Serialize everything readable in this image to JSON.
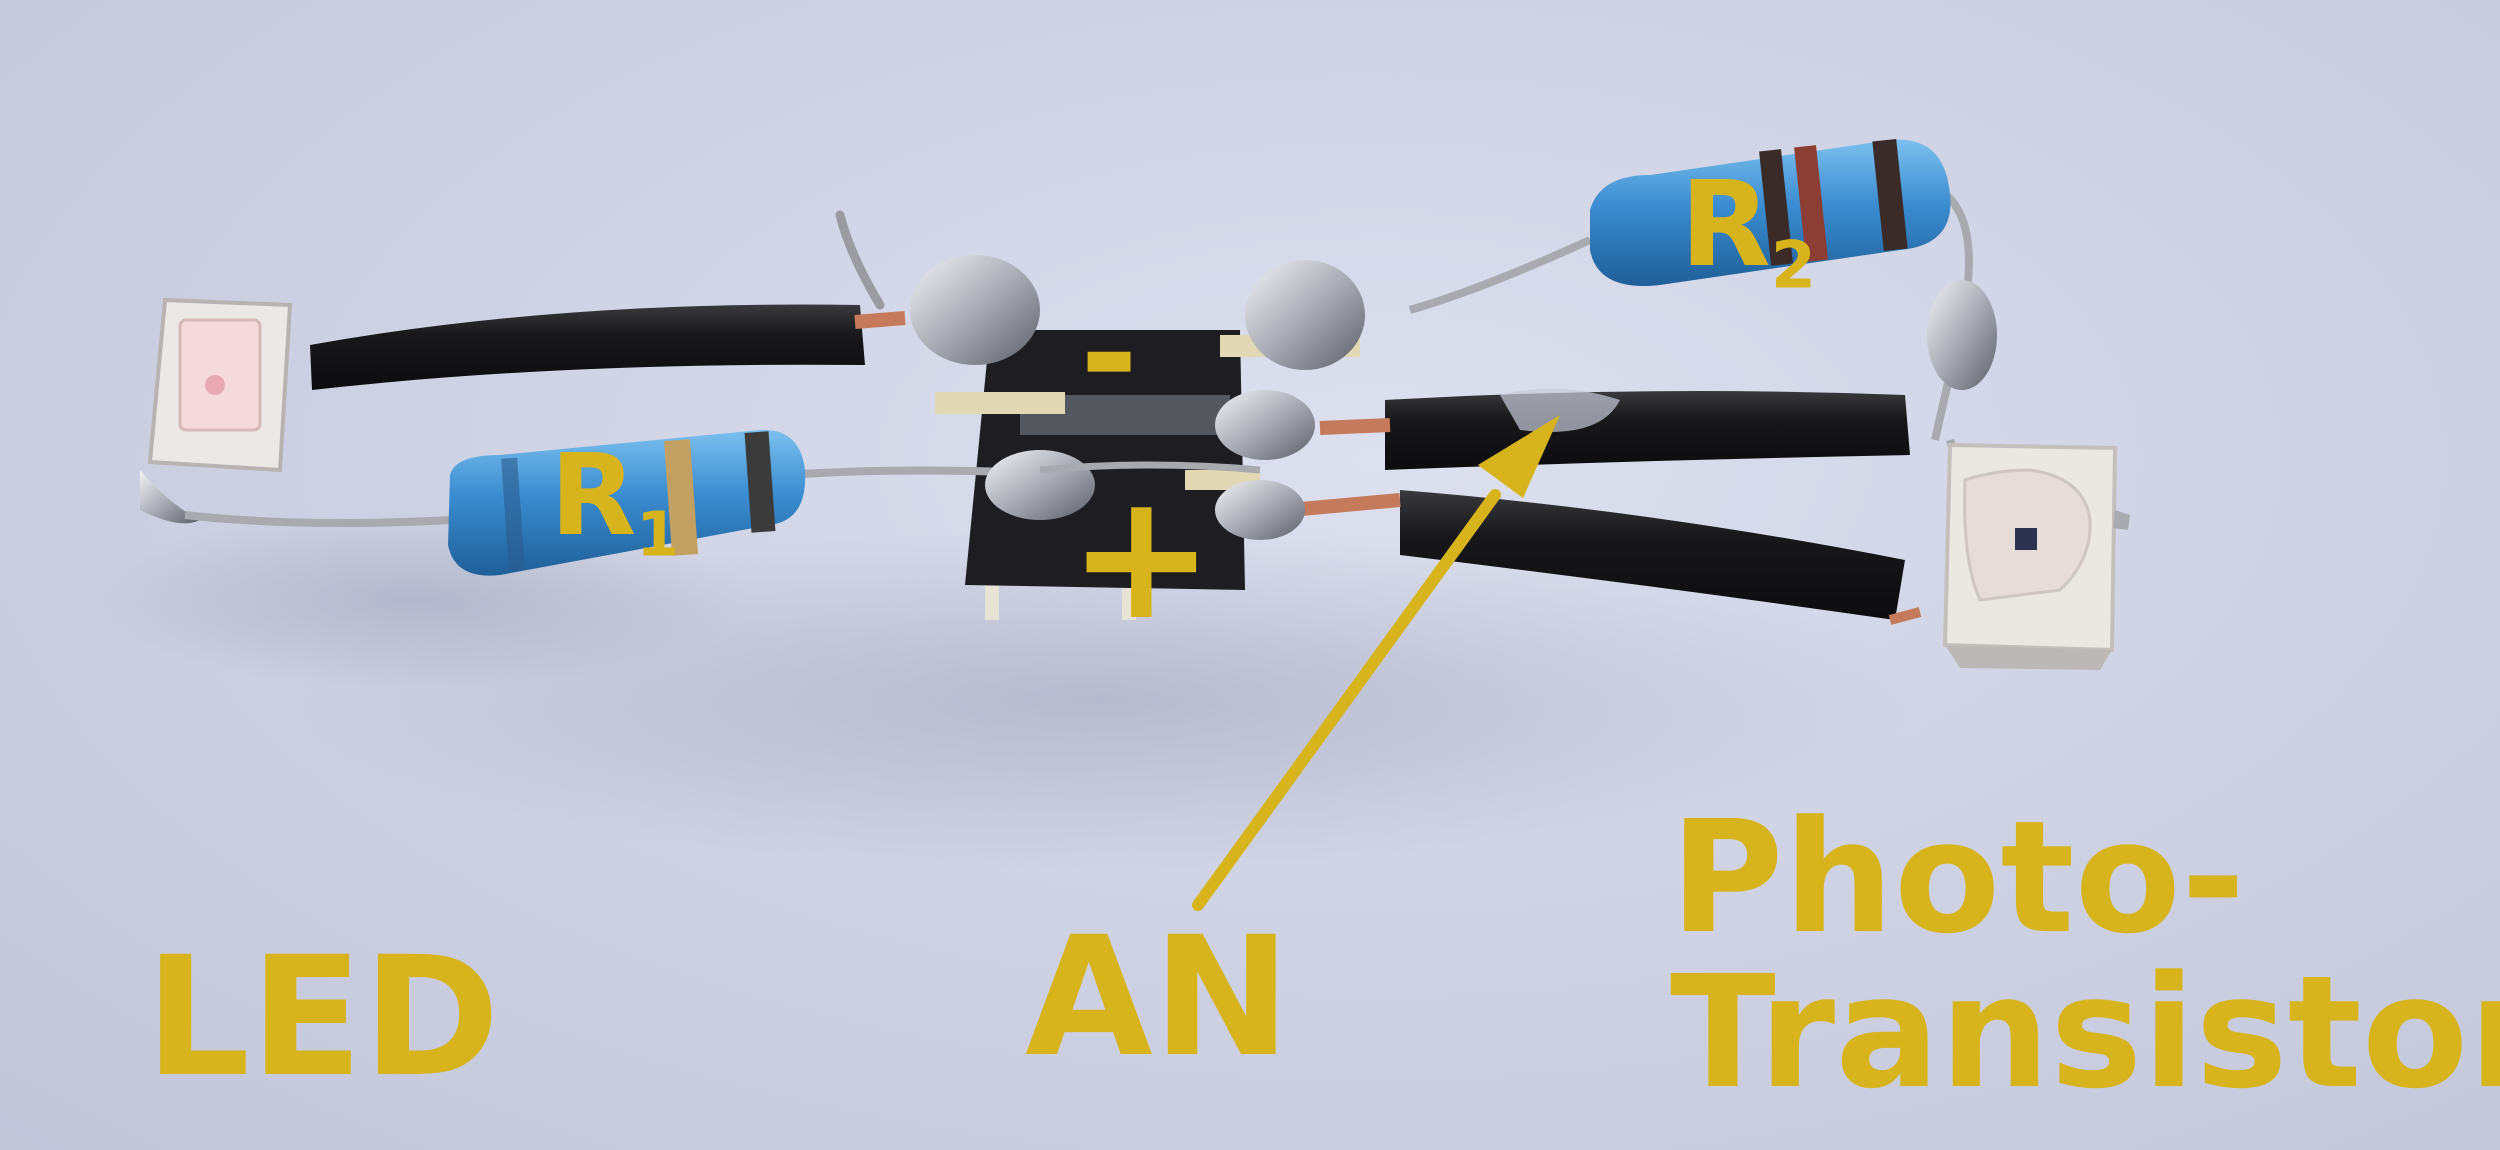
{
  "labels": {
    "r1": "R",
    "r1_sub": "1",
    "r2": "R",
    "r2_sub": "2",
    "minus": "-",
    "plus": "+",
    "led": "LED",
    "an": "AN",
    "phototransistor_line1": "Photo-",
    "phototransistor_line2": "Transistor"
  },
  "colors": {
    "label": "#d8b41c",
    "background": "#cfd3e4",
    "wire_insulation": "#1a1a1c",
    "resistor_body": "#3f8fcf",
    "solder": "#b9bcc4"
  }
}
